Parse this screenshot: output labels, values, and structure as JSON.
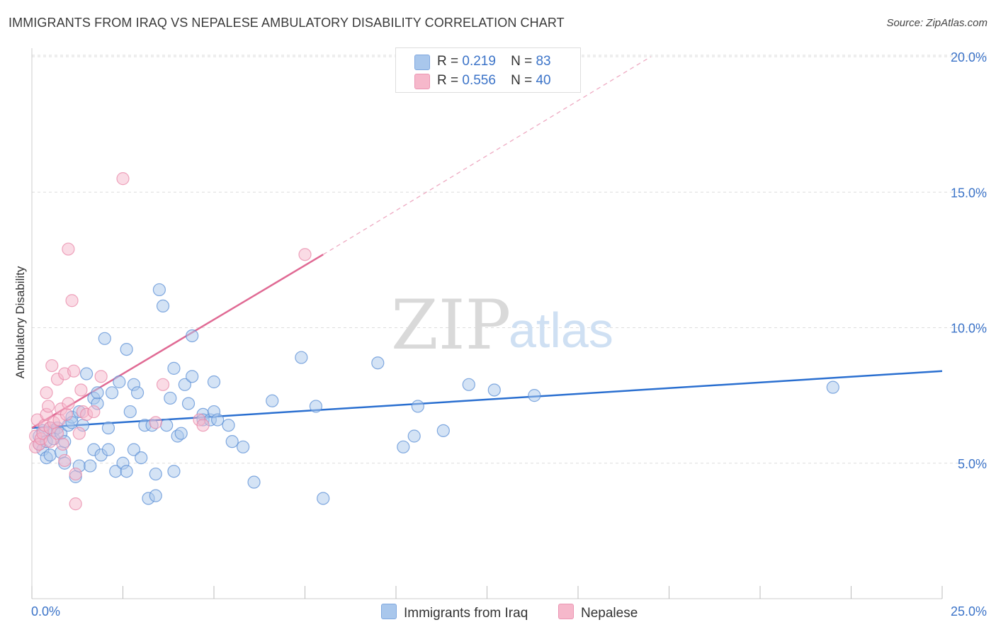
{
  "title": "IMMIGRANTS FROM IRAQ VS NEPALESE AMBULATORY DISABILITY CORRELATION CHART",
  "source": "Source: ZipAtlas.com",
  "watermark": {
    "zip": "ZIP",
    "atlas": "atlas"
  },
  "colors": {
    "blue_fill": "#a9c7ec",
    "blue_stroke": "#5b8fd6",
    "blue_line": "#2a6fd0",
    "pink_fill": "#f6b8cb",
    "pink_stroke": "#e888a8",
    "pink_line": "#e06a94",
    "grid": "#dddddd",
    "tick_text": "#3b73c8"
  },
  "legend_top": [
    {
      "r_label": "R =",
      "r_value": "0.219",
      "n_label": "N =",
      "n_value": "83",
      "color": "#a9c7ec"
    },
    {
      "r_label": "R =",
      "r_value": "0.556",
      "n_label": "N =",
      "n_value": "40",
      "color": "#f6b8cb"
    }
  ],
  "legend_bottom": [
    {
      "label": "Immigrants from Iraq",
      "color": "#a9c7ec"
    },
    {
      "label": "Nepalese",
      "color": "#f6b8cb"
    }
  ],
  "chart_data": {
    "type": "scatter",
    "title": "IMMIGRANTS FROM IRAQ VS NEPALESE AMBULATORY DISABILITY CORRELATION CHART",
    "xlabel": "",
    "ylabel": "Ambulatory Disability",
    "xlim": [
      0,
      25
    ],
    "ylim": [
      0,
      20
    ],
    "x_ticks": [
      {
        "value": 0,
        "label": "0.0%"
      },
      {
        "value": 25,
        "label": "25.0%"
      }
    ],
    "y_ticks": [
      {
        "value": 5,
        "label": "5.0%"
      },
      {
        "value": 10,
        "label": "10.0%"
      },
      {
        "value": 15,
        "label": "15.0%"
      },
      {
        "value": 20,
        "label": "20.0%"
      }
    ],
    "grid": true,
    "legend_position": "top-center",
    "series": [
      {
        "name": "Immigrants from Iraq",
        "color": "#a9c7ec",
        "trend": {
          "x": [
            0,
            25
          ],
          "y": [
            6.3,
            8.4
          ],
          "r": 0.219,
          "n": 83
        },
        "points": [
          [
            0.2,
            5.7
          ],
          [
            0.2,
            6.0
          ],
          [
            0.3,
            5.5
          ],
          [
            0.3,
            6.2
          ],
          [
            0.4,
            5.8
          ],
          [
            0.4,
            5.2
          ],
          [
            0.5,
            5.3
          ],
          [
            0.5,
            6.3
          ],
          [
            0.6,
            6.2
          ],
          [
            0.6,
            5.9
          ],
          [
            0.7,
            6.3
          ],
          [
            0.8,
            6.1
          ],
          [
            0.8,
            5.4
          ],
          [
            0.9,
            5.8
          ],
          [
            0.9,
            5.0
          ],
          [
            1.0,
            6.4
          ],
          [
            1.1,
            6.7
          ],
          [
            1.1,
            6.5
          ],
          [
            1.2,
            4.5
          ],
          [
            1.3,
            6.9
          ],
          [
            1.3,
            4.9
          ],
          [
            1.4,
            6.4
          ],
          [
            1.5,
            8.3
          ],
          [
            1.6,
            4.9
          ],
          [
            1.7,
            7.4
          ],
          [
            1.7,
            5.5
          ],
          [
            1.8,
            7.2
          ],
          [
            1.8,
            7.6
          ],
          [
            1.9,
            5.3
          ],
          [
            2.0,
            9.6
          ],
          [
            2.1,
            5.5
          ],
          [
            2.1,
            6.3
          ],
          [
            2.2,
            7.6
          ],
          [
            2.3,
            4.7
          ],
          [
            2.4,
            8.0
          ],
          [
            2.5,
            5.0
          ],
          [
            2.6,
            4.7
          ],
          [
            2.6,
            9.2
          ],
          [
            2.7,
            6.9
          ],
          [
            2.8,
            5.5
          ],
          [
            2.8,
            7.9
          ],
          [
            2.9,
            7.6
          ],
          [
            3.0,
            5.2
          ],
          [
            3.1,
            6.4
          ],
          [
            3.3,
            6.4
          ],
          [
            3.2,
            3.7
          ],
          [
            3.4,
            4.6
          ],
          [
            3.4,
            3.8
          ],
          [
            3.5,
            11.4
          ],
          [
            3.6,
            10.8
          ],
          [
            3.7,
            6.4
          ],
          [
            3.8,
            7.4
          ],
          [
            3.9,
            4.7
          ],
          [
            3.9,
            8.5
          ],
          [
            4.0,
            6.0
          ],
          [
            4.1,
            6.1
          ],
          [
            4.2,
            7.9
          ],
          [
            4.3,
            7.2
          ],
          [
            4.4,
            8.2
          ],
          [
            4.4,
            9.7
          ],
          [
            4.7,
            6.8
          ],
          [
            4.7,
            6.6
          ],
          [
            4.9,
            6.6
          ],
          [
            5.0,
            6.9
          ],
          [
            5.0,
            8.0
          ],
          [
            5.1,
            6.6
          ],
          [
            5.4,
            6.4
          ],
          [
            5.5,
            5.8
          ],
          [
            5.8,
            5.6
          ],
          [
            6.1,
            4.3
          ],
          [
            6.6,
            7.3
          ],
          [
            7.4,
            8.9
          ],
          [
            7.8,
            7.1
          ],
          [
            8.0,
            3.7
          ],
          [
            9.5,
            8.7
          ],
          [
            10.2,
            5.6
          ],
          [
            10.5,
            6.0
          ],
          [
            10.6,
            7.1
          ],
          [
            11.3,
            6.2
          ],
          [
            12.0,
            7.9
          ],
          [
            12.7,
            7.7
          ],
          [
            13.8,
            7.5
          ],
          [
            22.0,
            7.8
          ]
        ]
      },
      {
        "name": "Nepalese",
        "color": "#f6b8cb",
        "trend": {
          "x": [
            0,
            8.0
          ],
          "y": [
            6.3,
            12.7
          ],
          "r": 0.556,
          "n": 40,
          "dashed_extension_x": [
            8.0,
            17.0
          ],
          "dashed_extension_y": [
            12.7,
            20.0
          ]
        },
        "points": [
          [
            0.1,
            5.6
          ],
          [
            0.1,
            6.0
          ],
          [
            0.15,
            6.6
          ],
          [
            0.2,
            5.7
          ],
          [
            0.25,
            5.9
          ],
          [
            0.3,
            6.1
          ],
          [
            0.35,
            6.4
          ],
          [
            0.4,
            6.8
          ],
          [
            0.45,
            7.1
          ],
          [
            0.4,
            7.6
          ],
          [
            0.5,
            5.8
          ],
          [
            0.5,
            6.3
          ],
          [
            0.55,
            8.6
          ],
          [
            0.6,
            6.5
          ],
          [
            0.7,
            6.1
          ],
          [
            0.7,
            8.1
          ],
          [
            0.75,
            6.6
          ],
          [
            0.8,
            7.0
          ],
          [
            0.85,
            5.7
          ],
          [
            0.9,
            5.1
          ],
          [
            0.9,
            8.3
          ],
          [
            0.95,
            6.8
          ],
          [
            1.0,
            7.2
          ],
          [
            1.0,
            12.9
          ],
          [
            1.1,
            11.0
          ],
          [
            1.15,
            8.4
          ],
          [
            1.2,
            4.6
          ],
          [
            1.2,
            3.5
          ],
          [
            1.3,
            6.1
          ],
          [
            1.35,
            7.7
          ],
          [
            1.4,
            6.9
          ],
          [
            1.5,
            6.8
          ],
          [
            1.7,
            6.9
          ],
          [
            1.9,
            8.2
          ],
          [
            2.5,
            15.5
          ],
          [
            3.4,
            6.5
          ],
          [
            3.6,
            7.9
          ],
          [
            4.6,
            6.6
          ],
          [
            4.7,
            6.4
          ],
          [
            7.5,
            12.7
          ]
        ]
      }
    ]
  }
}
